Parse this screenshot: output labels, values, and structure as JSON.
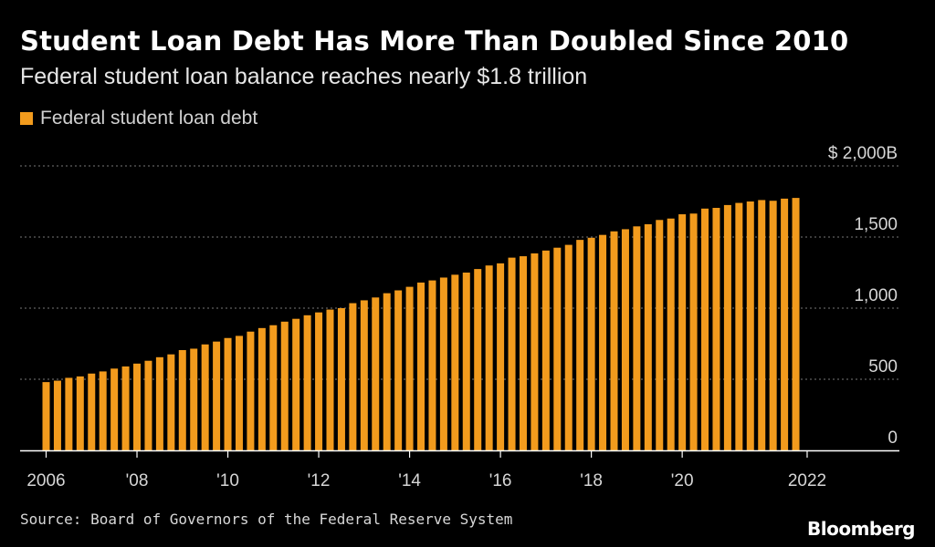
{
  "colors": {
    "bar": "#f29b1d",
    "grid": "#777777",
    "axis": "#ffffff"
  },
  "chart_data": {
    "type": "bar",
    "title": "Student Loan Debt Has More Than Doubled Since 2010",
    "subtitle": "Federal student loan balance reaches nearly $1.8 trillion",
    "legend": "Federal student loan debt",
    "ylim": [
      0,
      2000
    ],
    "y_ticks": [
      {
        "value": 0,
        "label": "0"
      },
      {
        "value": 500,
        "label": "500"
      },
      {
        "value": 1000,
        "label": "1,000"
      },
      {
        "value": 1500,
        "label": "1,500"
      },
      {
        "value": 2000,
        "label": "$ 2,000B"
      }
    ],
    "x_ticks": [
      {
        "index": 0,
        "label": "2006"
      },
      {
        "index": 8,
        "label": "'08"
      },
      {
        "index": 16,
        "label": "'10"
      },
      {
        "index": 24,
        "label": "'12"
      },
      {
        "index": 32,
        "label": "'14"
      },
      {
        "index": 40,
        "label": "'16"
      },
      {
        "index": 48,
        "label": "'18"
      },
      {
        "index": 56,
        "label": "'20"
      },
      {
        "index": 67,
        "label": "2022"
      }
    ],
    "series": [
      {
        "name": "Federal student loan debt",
        "start": "2006 Q1",
        "frequency": "quarterly",
        "values": [
          480,
          490,
          510,
          520,
          540,
          555,
          575,
          590,
          610,
          630,
          655,
          675,
          705,
          715,
          745,
          765,
          790,
          805,
          835,
          860,
          880,
          905,
          925,
          950,
          970,
          990,
          1000,
          1035,
          1055,
          1075,
          1105,
          1125,
          1150,
          1180,
          1195,
          1215,
          1235,
          1250,
          1275,
          1300,
          1315,
          1355,
          1365,
          1385,
          1405,
          1425,
          1445,
          1480,
          1495,
          1515,
          1540,
          1555,
          1575,
          1590,
          1620,
          1630,
          1660,
          1665,
          1700,
          1705,
          1725,
          1740,
          1750,
          1760,
          1755,
          1770,
          1775
        ]
      }
    ]
  },
  "footer": {
    "source": "Source: Board of Governors of the Federal Reserve System",
    "brand": "Bloomberg"
  }
}
